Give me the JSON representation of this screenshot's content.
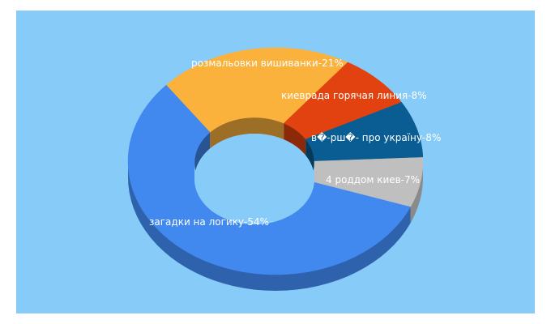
{
  "chart_data": {
    "type": "pie",
    "style": "3d-donut",
    "title": "",
    "background_color": "#87cbf9",
    "slices": [
      {
        "label": "загадки на логику-54%",
        "value": 54,
        "color": "#4188ef"
      },
      {
        "label": "розмальовки вишиванки-21%",
        "value": 21,
        "color": "#fbb23d"
      },
      {
        "label": "киеврада горячая линия-8%",
        "value": 8,
        "color": "#e2420f"
      },
      {
        "label": "в�-рш�- про україну-8%",
        "value": 8,
        "color": "#0a5d93"
      },
      {
        "label": "4 роддом киев-7%",
        "value": 7,
        "color": "#bfbfbf"
      }
    ]
  }
}
